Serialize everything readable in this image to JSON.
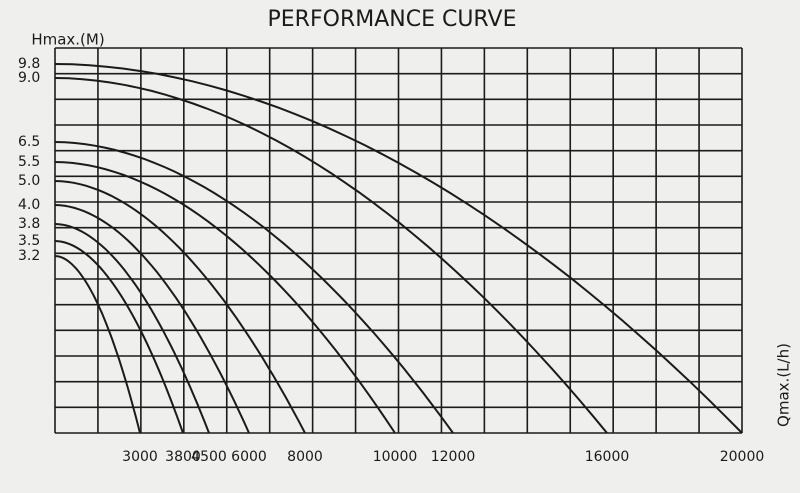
{
  "chart_data": {
    "type": "performance-curve",
    "title": "PERFORMANCE CURVE",
    "y_label": "Hmax.(M)",
    "x_label": "Qmax.(L/h)",
    "yticks": [
      9.8,
      {
        "value": 9,
        "label": "9.0"
      },
      6.5,
      5.5,
      {
        "value": 5,
        "label": "5.0"
      },
      {
        "value": 4,
        "label": "4.0"
      },
      3.8,
      3.5,
      3.2
    ],
    "xticks": [
      3000,
      3800,
      4500,
      6000,
      8000,
      10000,
      12000,
      16000,
      20000
    ],
    "curves": [
      {
        "hmax": 9.8,
        "qmax": 20000
      },
      {
        "hmax": 9,
        "qmax": 16000
      },
      {
        "hmax": 6.5,
        "qmax": 12000
      },
      {
        "hmax": 5.5,
        "qmax": 10000
      },
      {
        "hmax": 5,
        "qmax": 8000
      },
      {
        "hmax": 4,
        "qmax": 6000
      },
      {
        "hmax": 3.8,
        "qmax": 4500
      },
      {
        "hmax": 3.5,
        "qmax": 3800
      },
      {
        "hmax": 3.2,
        "qmax": 3000
      }
    ],
    "grid": true,
    "color": "#1b1b1b"
  }
}
